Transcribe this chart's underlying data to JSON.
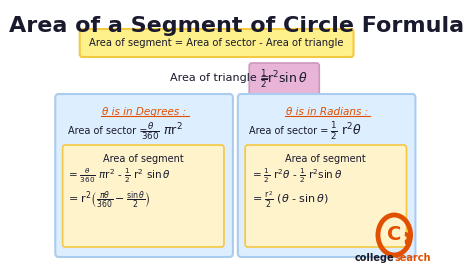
{
  "title": "Area of a Segment of Circle Formula",
  "title_fontsize": 16,
  "background_color": "#ffffff",
  "yellow_box_text": "Area of segment = Area of sector - Area of triangle",
  "yellow_box_color": "#fef08a",
  "yellow_box_border": "#f5c842",
  "triangle_label": "Area of triangle = ",
  "triangle_formula": "$\\frac{1}{2}$ r² sin θ",
  "purple_box_color": "#e8b4d8",
  "degrees_title": "θ is in Degrees :",
  "degrees_title_color": "#e05000",
  "degrees_sector": "Area of sector = $\\frac{θ}{360}$ πr²",
  "degrees_segment_title": "Area of segment",
  "degrees_segment_line1": "= $\\frac{θ}{360}$ πr² - $\\frac{1}{2}$ r² sin θ",
  "degrees_segment_line2": "= r²$\\left(\\frac{πθ}{360}$ - $\\frac{\\sin θ}{2}\\right)$",
  "radians_title": "θ is in Radians :",
  "radians_title_color": "#e05000",
  "radians_sector": "Area of sector = $\\frac{1}{2}$ r²θ",
  "radians_segment_title": "Area of segment",
  "radians_segment_line1": "= $\\frac{1}{2}$ r²θ - $\\frac{1}{2}$ r²sinθ",
  "radians_segment_line2": "= $\\frac{r²}{2}$ (θ - sin θ)",
  "blue_box_color": "#ddeeff",
  "blue_box_border": "#aaccee",
  "orange_box_color": "#fff3cc",
  "orange_box_border": "#f5c842",
  "logo_color": "#e05000",
  "logo_text_color": "#1a1a2e",
  "font_color": "#1a1a2e"
}
